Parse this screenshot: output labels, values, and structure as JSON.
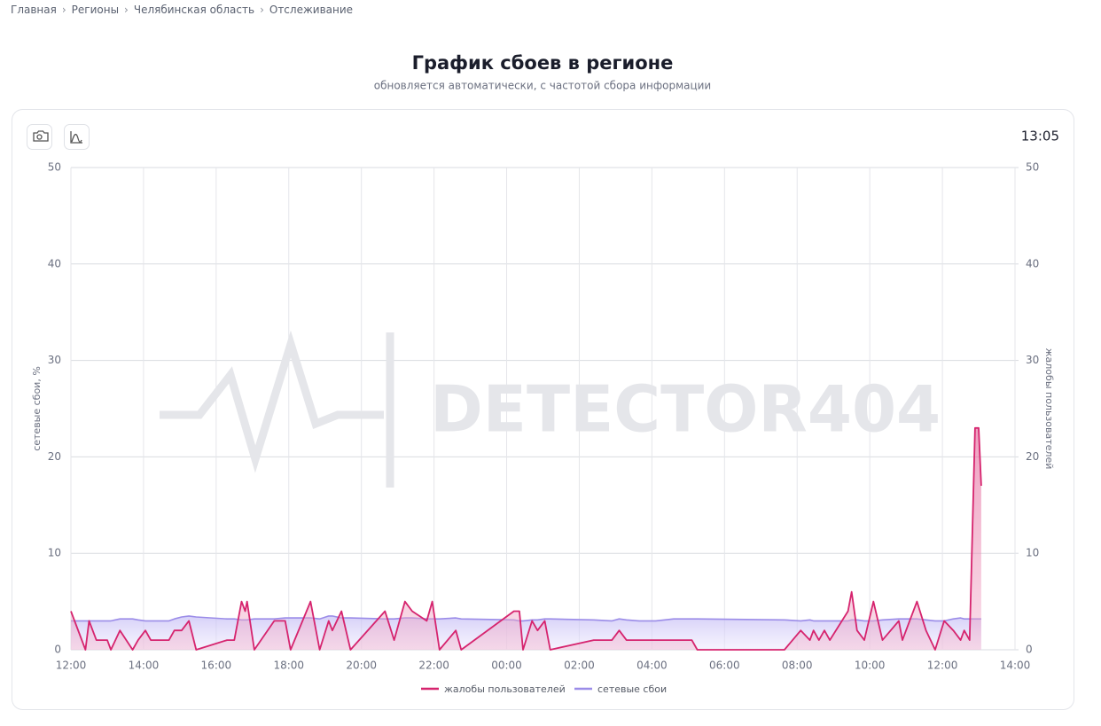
{
  "breadcrumbs": [
    "Главная",
    "Регионы",
    "Челябинская область",
    "Отслеживание"
  ],
  "header": {
    "title": "График сбоев в регионе",
    "subtitle": "обновляется автоматически, с частотой сбора информации"
  },
  "time": "13:05",
  "chart_data": {
    "type": "line",
    "watermark": "DETECTOR404",
    "ylabel": "сетевые сбои, %",
    "y2label": "жалобы пользователей",
    "x": [
      0,
      0.4,
      0.5,
      0.7,
      1,
      1.1,
      1.35,
      1.7,
      1.85,
      2.05,
      2.2,
      2.7,
      2.85,
      3.05,
      3.25,
      3.45,
      4.3,
      4.5,
      4.7,
      4.8,
      4.85,
      5.05,
      5.6,
      5.9,
      6.05,
      6.6,
      6.85,
      7.1,
      7.2,
      7.45,
      7.7,
      8.65,
      8.9,
      9.2,
      9.4,
      9.8,
      9.95,
      10.15,
      10.6,
      10.75,
      12.2,
      12.35,
      12.45,
      12.7,
      12.85,
      13.05,
      13.2,
      14.4,
      14.9,
      15.1,
      15.3,
      15.65,
      16.1,
      16.6,
      17.1,
      17.25,
      19.65,
      20.1,
      20.35,
      20.45,
      20.6,
      20.75,
      20.9,
      21.4,
      21.5,
      21.65,
      21.85,
      22.1,
      22.35,
      22.8,
      22.9,
      23.3,
      23.55,
      23.8,
      24.05,
      24.3,
      24.5,
      24.6,
      24.75,
      24.9,
      25,
      25.07
    ],
    "series": [
      {
        "name": "жалобы пользователей",
        "color": "#d6246e",
        "axis": "y2",
        "values": [
          4,
          0,
          3,
          1,
          1,
          0,
          2,
          0,
          1,
          2,
          1,
          1,
          2,
          2,
          3,
          0,
          1,
          1,
          5,
          4,
          5,
          0,
          3,
          3,
          0,
          5,
          0,
          3,
          2,
          4,
          0,
          4,
          1,
          5,
          4,
          3,
          5,
          0,
          2,
          0,
          4,
          4,
          0,
          3,
          2,
          3,
          0,
          1,
          1,
          2,
          1,
          1,
          1,
          1,
          1,
          0,
          0,
          2,
          1,
          2,
          1,
          2,
          1,
          4,
          6,
          2,
          1,
          5,
          1,
          3,
          1,
          5,
          2,
          0,
          3,
          2,
          1,
          2,
          1,
          23,
          23,
          17
        ]
      },
      {
        "name": "сетевые сбои",
        "color": "#9b8ce8",
        "values": [
          3,
          3,
          3,
          3,
          3,
          3,
          3.2,
          3.2,
          3.1,
          3,
          3,
          3,
          3.2,
          3.4,
          3.5,
          3.4,
          3.2,
          3.2,
          3.1,
          3.1,
          3.1,
          3.2,
          3.2,
          3.3,
          3.3,
          3.3,
          3.2,
          3.5,
          3.5,
          3.3,
          3.3,
          3.2,
          3.2,
          3.3,
          3.3,
          3.2,
          3.2,
          3.2,
          3.3,
          3.2,
          3.1,
          3,
          3,
          3.1,
          3.1,
          3.2,
          3.2,
          3.1,
          3,
          3.2,
          3.1,
          3,
          3,
          3.2,
          3.2,
          3.2,
          3.1,
          3,
          3.1,
          3,
          3,
          3,
          3,
          3,
          3.1,
          3.1,
          3,
          3,
          3.1,
          3.2,
          3.2,
          3.2,
          3.1,
          3,
          3,
          3.2,
          3.3,
          3.2,
          3.2,
          3.2,
          3.2,
          3.2
        ]
      }
    ],
    "xlim": [
      0,
      26
    ],
    "xticks": [
      {
        "value": 0,
        "label": "12:00"
      },
      {
        "value": 2,
        "label": "14:00"
      },
      {
        "value": 4,
        "label": "16:00"
      },
      {
        "value": 6,
        "label": "18:00"
      },
      {
        "value": 8,
        "label": "20:00"
      },
      {
        "value": 10,
        "label": "22:00"
      },
      {
        "value": 12,
        "label": "00:00"
      },
      {
        "value": 14,
        "label": "02:00"
      },
      {
        "value": 16,
        "label": "04:00"
      },
      {
        "value": 18,
        "label": "06:00"
      },
      {
        "value": 20,
        "label": "08:00"
      },
      {
        "value": 22,
        "label": "10:00"
      },
      {
        "value": 24,
        "label": "12:00"
      },
      {
        "value": 26,
        "label": "14:00"
      }
    ],
    "ylim": [
      0,
      50
    ],
    "yticks": [
      0,
      10,
      20,
      30,
      40,
      50
    ],
    "y2lim": [
      0,
      50
    ],
    "y2ticks": [
      0,
      10,
      20,
      30,
      40,
      50
    ],
    "grid": true,
    "legend": "bottom"
  }
}
